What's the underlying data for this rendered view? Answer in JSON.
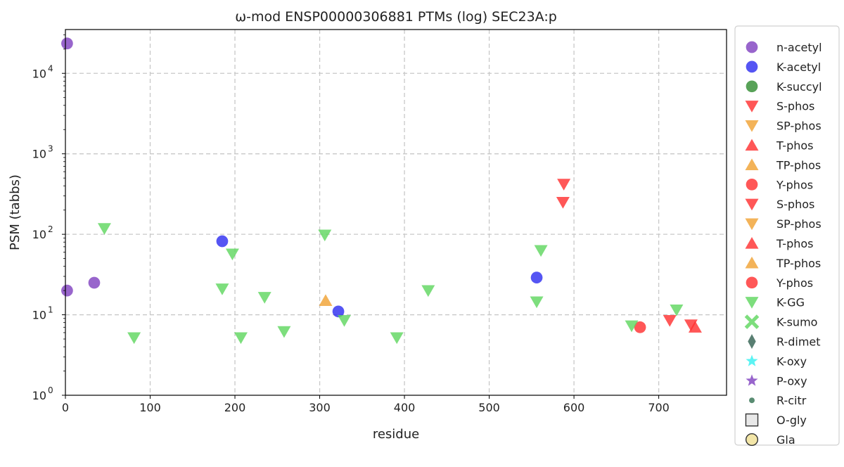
{
  "chart_data": {
    "type": "scatter",
    "title": "ω-mod ENSP00000306881 PTMs (log) SEC23A:p",
    "xlabel": "residue",
    "ylabel": "PSM (tabbs)",
    "xlim": [
      0,
      780
    ],
    "ylim": [
      1,
      35000
    ],
    "yscale": "log",
    "grid": true,
    "legend_position": "outside-right",
    "x_ticks": [
      {
        "value": 0,
        "label": "0"
      },
      {
        "value": 100,
        "label": "100"
      },
      {
        "value": 200,
        "label": "200"
      },
      {
        "value": 300,
        "label": "300"
      },
      {
        "value": 400,
        "label": "400"
      },
      {
        "value": 500,
        "label": "500"
      },
      {
        "value": 600,
        "label": "600"
      },
      {
        "value": 700,
        "label": "700"
      }
    ],
    "y_ticks": [
      {
        "value": 1,
        "base": "10",
        "exp": "0"
      },
      {
        "value": 10,
        "base": "10",
        "exp": "1"
      },
      {
        "value": 100,
        "base": "10",
        "exp": "2"
      },
      {
        "value": 1000,
        "base": "10",
        "exp": "3"
      },
      {
        "value": 10000,
        "base": "10",
        "exp": "4"
      }
    ],
    "series": [
      {
        "name": "n-acetyl",
        "marker": "circle",
        "color": "#7e3fbf",
        "points": [
          [
            2,
            23500
          ],
          [
            2,
            20
          ],
          [
            34,
            25
          ]
        ]
      },
      {
        "name": "K-acetyl",
        "marker": "circle",
        "color": "#2b2bf0",
        "points": [
          [
            185,
            82
          ],
          [
            322,
            11
          ],
          [
            556,
            29
          ]
        ]
      },
      {
        "name": "K-succyl",
        "marker": "circle",
        "color": "#2e8b2e",
        "points": []
      },
      {
        "name": "S-phos",
        "marker": "triangle-down",
        "color": "#ff2d2d",
        "points": []
      },
      {
        "name": "SP-phos",
        "marker": "triangle-down",
        "color": "#f0a030",
        "points": []
      },
      {
        "name": "T-phos",
        "marker": "triangle-up",
        "color": "#ff2d2d",
        "points": []
      },
      {
        "name": "TP-phos",
        "marker": "triangle-up",
        "color": "#f0a030",
        "points": []
      },
      {
        "name": "Y-phos",
        "marker": "circle",
        "color": "#ff2d2d",
        "points": []
      },
      {
        "name": "S-phos",
        "marker": "triangle-down",
        "color": "#ff2d2d",
        "points": [
          [
            588,
            420
          ],
          [
            587,
            250
          ],
          [
            713,
            8.5
          ],
          [
            738,
            7.5
          ]
        ]
      },
      {
        "name": "SP-phos",
        "marker": "triangle-down",
        "color": "#f0a030",
        "points": []
      },
      {
        "name": "T-phos",
        "marker": "triangle-up",
        "color": "#ff2d2d",
        "points": [
          [
            743,
            7.0
          ]
        ]
      },
      {
        "name": "TP-phos",
        "marker": "triangle-up",
        "color": "#f0a030",
        "points": [
          [
            307,
            15
          ]
        ]
      },
      {
        "name": "Y-phos",
        "marker": "circle",
        "color": "#ff2d2d",
        "points": [
          [
            678,
            7.0
          ]
        ]
      },
      {
        "name": "K-GG",
        "marker": "triangle-down",
        "color": "#5cd65c",
        "points": [
          [
            46,
            118
          ],
          [
            81,
            5.2
          ],
          [
            185,
            21
          ],
          [
            197,
            57
          ],
          [
            207,
            5.2
          ],
          [
            235,
            16.5
          ],
          [
            258,
            6.2
          ],
          [
            306,
            98
          ],
          [
            329,
            8.5
          ],
          [
            391,
            5.2
          ],
          [
            428,
            20
          ],
          [
            556,
            14.5
          ],
          [
            561,
            63
          ],
          [
            668,
            7.3
          ],
          [
            721,
            11.5
          ]
        ]
      },
      {
        "name": "K-sumo",
        "marker": "x",
        "color": "#5cd65c",
        "points": []
      },
      {
        "name": "R-dimet",
        "marker": "diamond",
        "color": "#2f5f4f",
        "points": []
      },
      {
        "name": "K-oxy",
        "marker": "star",
        "color": "#33f0f0",
        "points": []
      },
      {
        "name": "P-oxy",
        "marker": "star",
        "color": "#7e3fbf",
        "points": []
      },
      {
        "name": "R-citr",
        "marker": "small-circle",
        "color": "#2f6f4f",
        "points": []
      },
      {
        "name": "O-gly",
        "marker": "square",
        "color": "#e8e8e8",
        "points": []
      },
      {
        "name": "Gla",
        "marker": "circle-outline",
        "color": "#f3e6a8",
        "points": []
      }
    ]
  }
}
